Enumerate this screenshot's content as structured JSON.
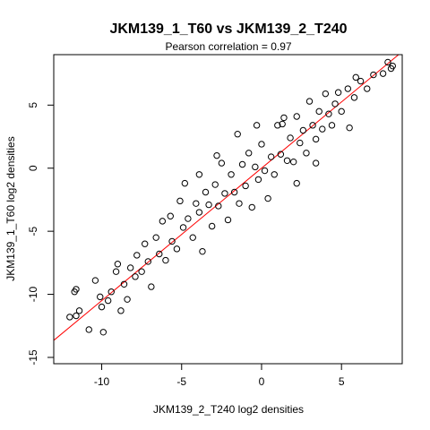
{
  "chart_data": {
    "type": "scatter",
    "title": "JKM139_1_T60 vs JKM139_2_T240",
    "subtitle_prefix": "Pearson correlation = ",
    "pearson_correlation": "0.97",
    "xlabel": "JKM139_2_T240 log2 densities",
    "ylabel": "JKM139_1_T60 log2 densities",
    "xlim": [
      -13.0,
      8.8
    ],
    "ylim": [
      -15.5,
      9.0
    ],
    "x_ticks": [
      -10,
      -5,
      0,
      5
    ],
    "y_ticks": [
      -15,
      -10,
      -5,
      0,
      5
    ],
    "grid": false,
    "fit_line": {
      "color": "#ff0000",
      "intercept": 0.0,
      "slope": 1.05
    },
    "point_color": "#000000",
    "series": [
      {
        "points": [
          [
            -11.6,
            -11.7
          ],
          [
            -11.4,
            -11.3
          ],
          [
            -11.7,
            -9.8
          ],
          [
            -11.6,
            -9.6
          ],
          [
            -10.8,
            -12.8
          ],
          [
            -10.4,
            -8.9
          ],
          [
            -10.1,
            -10.2
          ],
          [
            -10.0,
            -11.0
          ],
          [
            -9.9,
            -13.0
          ],
          [
            -9.6,
            -10.5
          ],
          [
            -9.4,
            -9.8
          ],
          [
            -9.1,
            -8.2
          ],
          [
            -9.0,
            -7.6
          ],
          [
            -8.8,
            -11.3
          ],
          [
            -8.6,
            -9.2
          ],
          [
            -8.4,
            -10.4
          ],
          [
            -8.2,
            -7.9
          ],
          [
            -7.9,
            -8.6
          ],
          [
            -7.8,
            -6.9
          ],
          [
            -7.5,
            -8.2
          ],
          [
            -7.3,
            -6.0
          ],
          [
            -7.1,
            -7.4
          ],
          [
            -6.9,
            -9.4
          ],
          [
            -6.6,
            -5.5
          ],
          [
            -6.4,
            -6.8
          ],
          [
            -6.2,
            -4.2
          ],
          [
            -6.0,
            -7.3
          ],
          [
            -5.7,
            -3.8
          ],
          [
            -5.6,
            -5.8
          ],
          [
            -5.3,
            -6.4
          ],
          [
            -5.1,
            -2.6
          ],
          [
            -4.9,
            -4.7
          ],
          [
            -4.8,
            -1.2
          ],
          [
            -4.6,
            -4.0
          ],
          [
            -4.3,
            -5.5
          ],
          [
            -4.1,
            -2.8
          ],
          [
            -3.9,
            -3.5
          ],
          [
            -3.7,
            -6.6
          ],
          [
            -3.5,
            -1.9
          ],
          [
            -3.3,
            -2.9
          ],
          [
            -3.1,
            -4.6
          ],
          [
            -2.9,
            -1.3
          ],
          [
            -2.7,
            -3.0
          ],
          [
            -2.5,
            0.4
          ],
          [
            -2.3,
            -2.0
          ],
          [
            -2.1,
            -4.1
          ],
          [
            -1.9,
            -0.5
          ],
          [
            -1.7,
            -1.9
          ],
          [
            -1.5,
            2.7
          ],
          [
            -1.4,
            -2.8
          ],
          [
            -1.2,
            0.3
          ],
          [
            -1.0,
            -1.4
          ],
          [
            -0.8,
            1.2
          ],
          [
            -0.6,
            -3.1
          ],
          [
            -0.4,
            0.1
          ],
          [
            -0.2,
            -0.9
          ],
          [
            0.0,
            1.9
          ],
          [
            0.2,
            -0.2
          ],
          [
            0.4,
            -2.4
          ],
          [
            0.6,
            0.9
          ],
          [
            0.8,
            -0.5
          ],
          [
            1.0,
            3.4
          ],
          [
            1.2,
            1.1
          ],
          [
            1.4,
            4.0
          ],
          [
            1.6,
            0.6
          ],
          [
            1.8,
            2.4
          ],
          [
            2.0,
            0.5
          ],
          [
            2.2,
            4.1
          ],
          [
            2.4,
            2.0
          ],
          [
            2.6,
            3.0
          ],
          [
            2.8,
            1.2
          ],
          [
            3.0,
            5.3
          ],
          [
            3.2,
            3.4
          ],
          [
            3.4,
            2.3
          ],
          [
            3.6,
            4.5
          ],
          [
            3.8,
            3.1
          ],
          [
            4.0,
            5.9
          ],
          [
            4.2,
            4.3
          ],
          [
            4.4,
            3.4
          ],
          [
            4.6,
            5.1
          ],
          [
            4.8,
            6.0
          ],
          [
            5.0,
            4.5
          ],
          [
            5.4,
            6.3
          ],
          [
            5.8,
            5.6
          ],
          [
            6.2,
            6.9
          ],
          [
            6.6,
            6.3
          ],
          [
            7.0,
            7.4
          ],
          [
            7.6,
            7.5
          ],
          [
            7.9,
            8.4
          ],
          [
            8.1,
            7.9
          ],
          [
            8.2,
            8.1
          ],
          [
            5.9,
            7.2
          ],
          [
            -12.0,
            -11.8
          ],
          [
            -0.3,
            3.4
          ],
          [
            1.3,
            3.5
          ],
          [
            2.2,
            -1.2
          ],
          [
            -2.8,
            1.0
          ],
          [
            -3.9,
            -0.5
          ],
          [
            3.4,
            0.4
          ],
          [
            5.5,
            3.2
          ]
        ]
      }
    ]
  }
}
